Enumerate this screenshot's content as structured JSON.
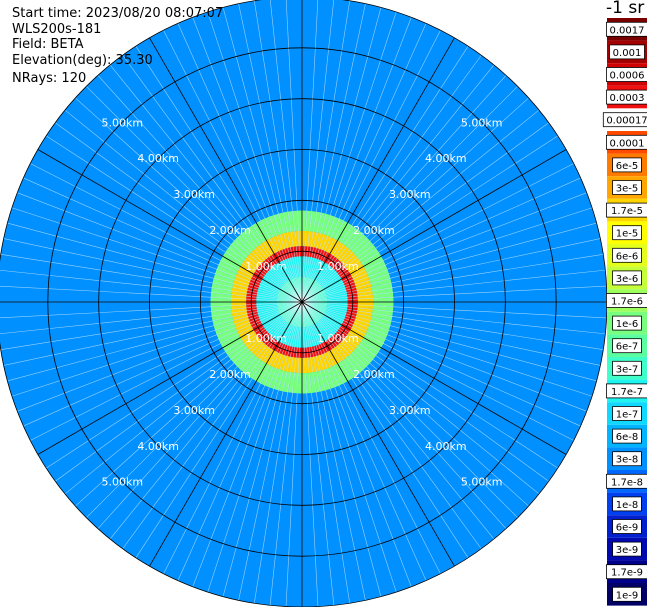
{
  "header": {
    "start_time": "Start time: 2023/08/20 08:07:07",
    "instrument": "WLS200s-181",
    "field": "Field: BETA",
    "elevation": "Elevation(deg): 35.30",
    "nrays": "NRays: 120"
  },
  "colorbar": {
    "unit": "-1 sr",
    "levels": [
      {
        "label": "0.0017",
        "color": "#7a0000"
      },
      {
        "label": "0.001",
        "color": "#a50000"
      },
      {
        "label": "0.0006",
        "color": "#d00000"
      },
      {
        "label": "0.0003",
        "color": "#f01010"
      },
      {
        "label": "0.00017",
        "color": "#ffffff"
      },
      {
        "label": "0.0001",
        "color": "#ff4a00"
      },
      {
        "label": "6e-5",
        "color": "#ff7a00"
      },
      {
        "label": "3e-5",
        "color": "#ffa600"
      },
      {
        "label": "1.7e-5",
        "color": "#ffd400"
      },
      {
        "label": "1e-5",
        "color": "#ffff00"
      },
      {
        "label": "6e-6",
        "color": "#e4ff1c"
      },
      {
        "label": "3e-6",
        "color": "#c4ff3a"
      },
      {
        "label": "1.7e-6",
        "color": "#9cff5c"
      },
      {
        "label": "1e-6",
        "color": "#78ff80"
      },
      {
        "label": "6e-7",
        "color": "#5cffa0"
      },
      {
        "label": "3e-7",
        "color": "#40ffc8"
      },
      {
        "label": "1.7e-7",
        "color": "#20f4f0"
      },
      {
        "label": "1e-7",
        "color": "#10d8ff"
      },
      {
        "label": "6e-8",
        "color": "#00b4ff"
      },
      {
        "label": "3e-8",
        "color": "#0090ff"
      },
      {
        "label": "1.7e-8",
        "color": "#0068ff"
      },
      {
        "label": "1e-8",
        "color": "#0040f0"
      },
      {
        "label": "6e-9",
        "color": "#0020d0"
      },
      {
        "label": "3e-9",
        "color": "#0008b0"
      },
      {
        "label": "1.7e-9",
        "color": "#00008a"
      },
      {
        "label": "1e-9",
        "color": "#000066"
      }
    ]
  },
  "chart_data": {
    "type": "heatmap",
    "projection": "polar-ppi",
    "field": "BETA",
    "n_rays": 120,
    "max_range_km": 6.0,
    "range_rings_km": [
      1.0,
      2.0,
      3.0,
      4.0,
      5.0,
      6.0
    ],
    "range_ring_labels": [
      "1.00km",
      "2.00km",
      "3.00km",
      "4.00km",
      "5.00km"
    ],
    "radial_lines_deg": [
      0,
      30,
      60,
      90,
      120,
      150,
      180,
      210,
      240,
      270,
      300,
      330
    ],
    "grid": true,
    "profile_km": [
      {
        "range_km": 0.5,
        "level": "3e-7"
      },
      {
        "range_km": 0.9,
        "level": "1.7e-7"
      },
      {
        "range_km": 1.1,
        "level": "0.0003"
      },
      {
        "range_km": 1.4,
        "level": "1.7e-5"
      },
      {
        "range_km": 1.8,
        "level": "1e-6"
      },
      {
        "range_km": 2.5,
        "level": "3e-8"
      },
      {
        "range_km": 6.0,
        "level": "3e-8"
      }
    ]
  }
}
